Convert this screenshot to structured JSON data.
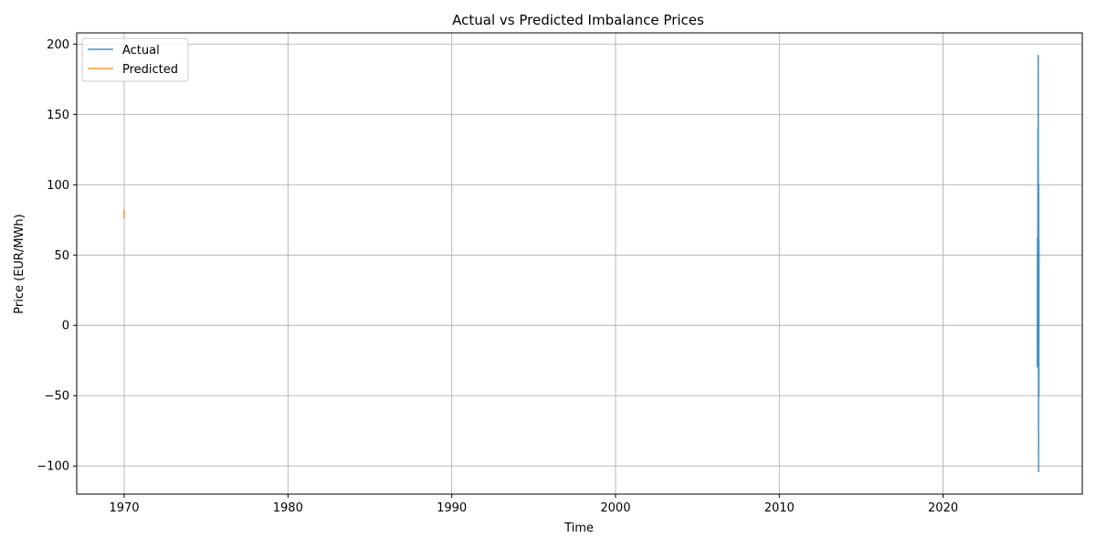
{
  "chart_data": {
    "type": "line",
    "title": "Actual vs Predicted Imbalance Prices",
    "xlabel": "Time",
    "ylabel": "Price (EUR/MWh)",
    "xlim": [
      1967.1,
      2028.5
    ],
    "ylim": [
      -120,
      208
    ],
    "x_ticks": [
      1970,
      1980,
      1990,
      2000,
      2010,
      2020
    ],
    "x_tick_labels": [
      "1970",
      "1980",
      "1990",
      "2000",
      "2010",
      "2020"
    ],
    "y_ticks": [
      -100,
      -50,
      0,
      50,
      100,
      150,
      200
    ],
    "y_tick_labels": [
      "−100",
      "−50",
      "0",
      "50",
      "100",
      "150",
      "200"
    ],
    "grid": true,
    "legend_position": "top-left",
    "series": [
      {
        "name": "Actual",
        "color": "#1f77b4",
        "x": [
          2025.75,
          2025.76,
          2025.77,
          2025.78,
          2025.79,
          2025.8,
          2025.81,
          2025.82,
          2025.83,
          2025.84,
          2025.85,
          2025.86
        ],
        "y": [
          -30,
          62,
          -20,
          30,
          140,
          88,
          192,
          20,
          -104,
          100,
          -50,
          60
        ]
      },
      {
        "name": "Predicted",
        "color": "#ff7f0e",
        "x": [
          1970.0,
          1970.001,
          1970.002,
          1970.003
        ],
        "y": [
          76,
          82,
          78,
          80
        ]
      }
    ]
  }
}
